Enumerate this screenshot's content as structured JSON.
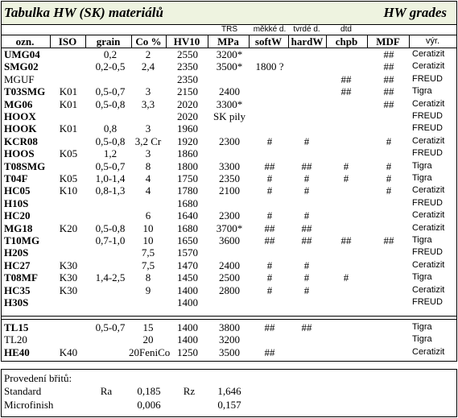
{
  "header": {
    "title": "Tabulka HW (SK) materiálů",
    "subtitle": "HW grades"
  },
  "table": {
    "superheaders": [
      null,
      null,
      null,
      null,
      null,
      "TRS",
      "měkké d.",
      "tvrdé d.",
      "dtd",
      null,
      null
    ],
    "columns": [
      "ozn.",
      "ISO",
      "grain",
      "Co %",
      "HV10",
      "MPa",
      "softW",
      "hardW",
      "chpb",
      "MDF",
      "výr."
    ],
    "groups": [
      [
        {
          "bold": true,
          "cells": [
            "UMG04",
            null,
            "0,2",
            "2",
            "2550",
            "3200*",
            null,
            null,
            null,
            "##",
            "Ceratizit"
          ]
        },
        {
          "bold": true,
          "cells": [
            "SMG02",
            null,
            "0,2-0,5",
            "2,4",
            "2350",
            "3500*",
            "1800 ?",
            null,
            null,
            "##",
            "Ceratizit"
          ]
        },
        {
          "bold": false,
          "cells": [
            "MGUF",
            null,
            null,
            null,
            "2350",
            null,
            null,
            null,
            "##",
            "##",
            "FREUD"
          ]
        },
        {
          "bold": true,
          "cells": [
            "T03SMG",
            "K01",
            "0,5-0,7",
            "3",
            "2150",
            "2400",
            null,
            null,
            "##",
            "##",
            "Tigra"
          ]
        },
        {
          "bold": true,
          "cells": [
            "MG06",
            "K01",
            "0,5-0,8",
            "3,3",
            "2020",
            "3300*",
            null,
            null,
            null,
            "##",
            "Ceratizit"
          ]
        },
        {
          "bold": true,
          "cells": [
            "HOOX",
            null,
            null,
            null,
            "2020",
            "SK pily",
            null,
            null,
            null,
            null,
            "FREUD"
          ]
        },
        {
          "bold": true,
          "cells": [
            "HOOK",
            "K01",
            "0,8",
            "3",
            "1960",
            null,
            null,
            null,
            null,
            null,
            "FREUD"
          ]
        },
        {
          "bold": true,
          "cells": [
            "KCR08",
            null,
            "0,5-0,8",
            "3,2 Cr",
            "1920",
            "2300",
            "#",
            "#",
            null,
            "#",
            "Ceratizit"
          ]
        },
        {
          "bold": true,
          "cells": [
            "HOOS",
            "K05",
            "1,2",
            "3",
            "1860",
            null,
            null,
            null,
            null,
            null,
            "FREUD"
          ]
        },
        {
          "bold": true,
          "cells": [
            "T08SMG",
            null,
            "0,5-0,7",
            "8",
            "1800",
            "3300",
            "##",
            "##",
            "#",
            "#",
            "Tigra"
          ]
        },
        {
          "bold": true,
          "cells": [
            "T04F",
            "K05",
            "1,0-1,4",
            "4",
            "1750",
            "2350",
            "#",
            "#",
            "#",
            "#",
            "Tigra"
          ]
        },
        {
          "bold": true,
          "cells": [
            "HC05",
            "K10",
            "0,8-1,3",
            "4",
            "1780",
            "2100",
            "#",
            "#",
            null,
            "#",
            "Ceratizit"
          ]
        },
        {
          "bold": true,
          "cells": [
            "H10S",
            null,
            null,
            null,
            "1680",
            null,
            null,
            null,
            null,
            null,
            "FREUD"
          ]
        },
        {
          "bold": true,
          "cells": [
            "HC20",
            null,
            null,
            "6",
            "1640",
            "2300",
            "#",
            "#",
            null,
            null,
            "Ceratizit"
          ]
        },
        {
          "bold": true,
          "cells": [
            "MG18",
            "K20",
            "0,5-0,8",
            "10",
            "1680",
            "3700*",
            "##",
            "##",
            null,
            null,
            "Ceratizit"
          ]
        },
        {
          "bold": true,
          "cells": [
            "T10MG",
            null,
            "0,7-1,0",
            "10",
            "1650",
            "3600",
            "##",
            "##",
            "##",
            "##",
            "Tigra"
          ]
        },
        {
          "bold": true,
          "cells": [
            "H20S",
            null,
            null,
            "7,5",
            "1570",
            null,
            null,
            null,
            null,
            null,
            "FREUD"
          ]
        },
        {
          "bold": true,
          "cells": [
            "HC27",
            "K30",
            null,
            "7,5",
            "1470",
            "2400",
            "#",
            "#",
            null,
            null,
            "Ceratizit"
          ]
        },
        {
          "bold": true,
          "cells": [
            "T08MF",
            "K30",
            "1,4-2,5",
            "8",
            "1450",
            "2500",
            "#",
            "#",
            "#",
            null,
            "Tigra"
          ]
        },
        {
          "bold": true,
          "cells": [
            "HC35",
            "K30",
            null,
            "9",
            "1400",
            "2800",
            "#",
            "#",
            null,
            null,
            "Ceratizit"
          ]
        },
        {
          "bold": true,
          "cells": [
            "H30S",
            null,
            null,
            null,
            "1400",
            null,
            null,
            null,
            null,
            null,
            "FREUD"
          ]
        }
      ],
      [
        {
          "bold": true,
          "cells": [
            "TL15",
            null,
            "0,5-0,7",
            "15",
            "1400",
            "3800",
            "##",
            "##",
            null,
            null,
            "Tigra"
          ]
        },
        {
          "bold": false,
          "cells": [
            "TL20",
            null,
            null,
            "20",
            "1400",
            "3200",
            null,
            null,
            null,
            null,
            "Tigra"
          ]
        },
        {
          "bold": true,
          "cells": [
            "HE40",
            "K40",
            null,
            "20FeniCo",
            "1250",
            "3500",
            "##",
            null,
            null,
            null,
            "Ceratizit"
          ]
        }
      ]
    ]
  },
  "footer": {
    "title": "Provedení břitů:",
    "rows": [
      [
        "Standard",
        "Ra",
        "0,185",
        "Rz",
        "1,646"
      ],
      [
        "Microfinish",
        null,
        "0,006",
        null,
        "0,157"
      ]
    ]
  }
}
